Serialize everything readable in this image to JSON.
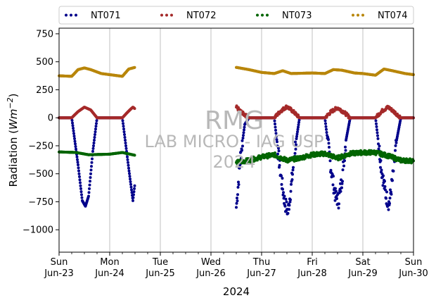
{
  "chart_data": {
    "type": "scatter",
    "ylabel": "Radiation (Wm⁻²)",
    "xlabel": "2024",
    "ylim": [
      -1200,
      800
    ],
    "yticks": [
      750,
      500,
      250,
      0,
      -250,
      -500,
      -750,
      -1000
    ],
    "ytick_labels": [
      "750",
      "500",
      "250",
      "0",
      "−250",
      "−500",
      "−750",
      "−1000"
    ],
    "xlim": [
      "2024-06-23",
      "2024-06-30"
    ],
    "xticks": [
      {
        "day": "Sun",
        "date": "Jun-23"
      },
      {
        "day": "Mon",
        "date": "Jun-24"
      },
      {
        "day": "Tue",
        "date": "Jun-25"
      },
      {
        "day": "Wed",
        "date": "Jun-26"
      },
      {
        "day": "Thu",
        "date": "Jun-27"
      },
      {
        "day": "Fri",
        "date": "Jun-28"
      },
      {
        "day": "Sat",
        "date": "Jun-29"
      },
      {
        "day": "Sun",
        "date": "Jun-30"
      }
    ],
    "grid": "vertical",
    "legend_position": "top",
    "watermark": [
      "RMG",
      "LAB MICRO - IAG USP",
      "2024"
    ],
    "data_gap": {
      "start": "2024-06-24T12:00",
      "end": "2024-06-26T12:00"
    },
    "series": [
      {
        "name": "NT071",
        "color": "#00008b",
        "points": [
          [
            "2024-06-23T00:00",
            0
          ],
          [
            "2024-06-23T06:00",
            0
          ],
          [
            "2024-06-23T09:00",
            -420
          ],
          [
            "2024-06-23T11:00",
            -740
          ],
          [
            "2024-06-23T12:30",
            -790
          ],
          [
            "2024-06-23T14:00",
            -700
          ],
          [
            "2024-06-23T16:00",
            -300
          ],
          [
            "2024-06-23T18:00",
            0
          ],
          [
            "2024-06-24T06:00",
            0
          ],
          [
            "2024-06-24T09:00",
            -450
          ],
          [
            "2024-06-24T11:00",
            -740
          ],
          [
            "2024-06-24T12:00",
            -580
          ],
          [
            "2024-06-26T12:00",
            -800
          ],
          [
            "2024-06-26T14:00",
            -350
          ],
          [
            "2024-06-26T16:00",
            -60
          ],
          [
            "2024-06-26T18:00",
            0
          ],
          [
            "2024-06-27T06:00",
            0
          ],
          [
            "2024-06-27T09:00",
            -500
          ],
          [
            "2024-06-27T11:00",
            -760
          ],
          [
            "2024-06-27T12:30",
            -840
          ],
          [
            "2024-06-27T14:00",
            -620
          ],
          [
            "2024-06-27T16:00",
            -250
          ],
          [
            "2024-06-27T18:00",
            0
          ],
          [
            "2024-06-28T06:00",
            0
          ],
          [
            "2024-06-28T09:00",
            -470
          ],
          [
            "2024-06-28T11:00",
            -700
          ],
          [
            "2024-06-28T12:30",
            -740
          ],
          [
            "2024-06-28T14:00",
            -560
          ],
          [
            "2024-06-28T16:00",
            -200
          ],
          [
            "2024-06-28T18:00",
            0
          ],
          [
            "2024-06-29T06:00",
            0
          ],
          [
            "2024-06-29T09:00",
            -480
          ],
          [
            "2024-06-29T11:00",
            -700
          ],
          [
            "2024-06-29T12:30",
            -770
          ],
          [
            "2024-06-29T14:00",
            -560
          ],
          [
            "2024-06-29T16:00",
            -200
          ],
          [
            "2024-06-29T18:00",
            0
          ],
          [
            "2024-06-30T00:00",
            0
          ]
        ]
      },
      {
        "name": "NT072",
        "color": "#a52a2a",
        "points": [
          [
            "2024-06-23T00:00",
            0
          ],
          [
            "2024-06-23T06:00",
            0
          ],
          [
            "2024-06-23T09:00",
            55
          ],
          [
            "2024-06-23T12:00",
            95
          ],
          [
            "2024-06-23T15:00",
            70
          ],
          [
            "2024-06-23T18:00",
            0
          ],
          [
            "2024-06-24T06:00",
            0
          ],
          [
            "2024-06-24T09:00",
            60
          ],
          [
            "2024-06-24T11:00",
            95
          ],
          [
            "2024-06-24T12:00",
            80
          ],
          [
            "2024-06-26T12:00",
            95
          ],
          [
            "2024-06-26T15:00",
            40
          ],
          [
            "2024-06-26T18:00",
            0
          ],
          [
            "2024-06-27T06:00",
            0
          ],
          [
            "2024-06-27T09:00",
            60
          ],
          [
            "2024-06-27T12:00",
            100
          ],
          [
            "2024-06-27T15:00",
            55
          ],
          [
            "2024-06-27T18:00",
            0
          ],
          [
            "2024-06-28T06:00",
            0
          ],
          [
            "2024-06-28T09:00",
            55
          ],
          [
            "2024-06-28T12:00",
            90
          ],
          [
            "2024-06-28T15:00",
            50
          ],
          [
            "2024-06-28T18:00",
            0
          ],
          [
            "2024-06-29T06:00",
            0
          ],
          [
            "2024-06-29T09:00",
            60
          ],
          [
            "2024-06-29T12:00",
            95
          ],
          [
            "2024-06-29T15:00",
            50
          ],
          [
            "2024-06-29T18:00",
            0
          ],
          [
            "2024-06-30T00:00",
            0
          ]
        ]
      },
      {
        "name": "NT073",
        "color": "#006400",
        "points": [
          [
            "2024-06-23T00:00",
            -305
          ],
          [
            "2024-06-23T08:00",
            -310
          ],
          [
            "2024-06-23T14:00",
            -330
          ],
          [
            "2024-06-24T00:00",
            -325
          ],
          [
            "2024-06-24T06:00",
            -310
          ],
          [
            "2024-06-24T12:00",
            -335
          ],
          [
            "2024-06-26T12:00",
            -400
          ],
          [
            "2024-06-26T18:00",
            -380
          ],
          [
            "2024-06-27T00:00",
            -350
          ],
          [
            "2024-06-27T06:00",
            -330
          ],
          [
            "2024-06-27T12:00",
            -380
          ],
          [
            "2024-06-27T18:00",
            -360
          ],
          [
            "2024-06-28T00:00",
            -330
          ],
          [
            "2024-06-28T06:00",
            -320
          ],
          [
            "2024-06-28T12:00",
            -360
          ],
          [
            "2024-06-28T18:00",
            -320
          ],
          [
            "2024-06-29T00:00",
            -310
          ],
          [
            "2024-06-29T06:00",
            -310
          ],
          [
            "2024-06-29T12:00",
            -340
          ],
          [
            "2024-06-29T18:00",
            -380
          ],
          [
            "2024-06-30T00:00",
            -385
          ]
        ]
      },
      {
        "name": "NT074",
        "color": "#b8860b",
        "points": [
          [
            "2024-06-23T00:00",
            375
          ],
          [
            "2024-06-23T06:00",
            370
          ],
          [
            "2024-06-23T09:00",
            430
          ],
          [
            "2024-06-23T12:00",
            445
          ],
          [
            "2024-06-23T15:00",
            430
          ],
          [
            "2024-06-23T20:00",
            395
          ],
          [
            "2024-06-24T00:00",
            385
          ],
          [
            "2024-06-24T06:00",
            370
          ],
          [
            "2024-06-24T09:00",
            435
          ],
          [
            "2024-06-24T12:00",
            450
          ],
          [
            "2024-06-26T12:00",
            450
          ],
          [
            "2024-06-26T18:00",
            430
          ],
          [
            "2024-06-27T00:00",
            405
          ],
          [
            "2024-06-27T06:00",
            395
          ],
          [
            "2024-06-27T10:00",
            420
          ],
          [
            "2024-06-27T14:00",
            395
          ],
          [
            "2024-06-28T00:00",
            400
          ],
          [
            "2024-06-28T06:00",
            395
          ],
          [
            "2024-06-28T10:00",
            430
          ],
          [
            "2024-06-28T14:00",
            425
          ],
          [
            "2024-06-28T20:00",
            400
          ],
          [
            "2024-06-29T00:00",
            395
          ],
          [
            "2024-06-29T06:00",
            380
          ],
          [
            "2024-06-29T10:00",
            435
          ],
          [
            "2024-06-29T14:00",
            420
          ],
          [
            "2024-06-29T20:00",
            395
          ],
          [
            "2024-06-30T00:00",
            385
          ]
        ]
      }
    ]
  }
}
